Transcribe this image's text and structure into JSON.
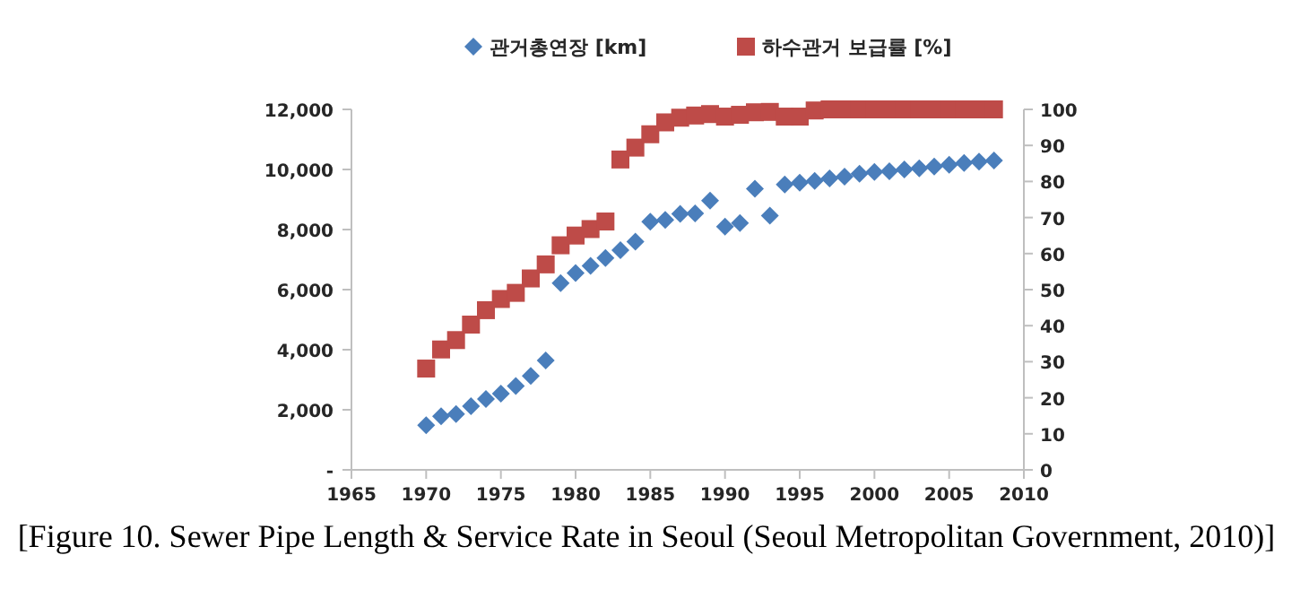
{
  "chart_data": {
    "type": "scatter",
    "x": [
      1970,
      1971,
      1972,
      1973,
      1974,
      1975,
      1976,
      1977,
      1978,
      1979,
      1980,
      1981,
      1982,
      1983,
      1984,
      1985,
      1986,
      1987,
      1988,
      1989,
      1990,
      1991,
      1992,
      1993,
      1994,
      1995,
      1996,
      1997,
      1998,
      1999,
      2000,
      2001,
      2002,
      2003,
      2004,
      2005,
      2006,
      2007,
      2008
    ],
    "series": [
      {
        "name": "관거총연장 [km]",
        "color": "#4a7ebb",
        "marker": "diamond",
        "values": [
          1485,
          1780,
          1860,
          2120,
          2360,
          2540,
          2790,
          3130,
          3640,
          6220,
          6550,
          6790,
          7050,
          7310,
          7600,
          8260,
          8320,
          8520,
          8540,
          8960,
          8100,
          8220,
          9360,
          8460,
          9500,
          9560,
          9620,
          9700,
          9760,
          9860,
          9920,
          9940,
          10000,
          10040,
          10100,
          10160,
          10220,
          10260,
          10300
        ]
      },
      {
        "name": "하수관거 보급률 [%]",
        "color": "#be4b48",
        "marker": "square",
        "axis": "y2",
        "values": [
          28.1,
          33.4,
          36.0,
          40.3,
          44.3,
          47.4,
          49.1,
          53.1,
          57.0,
          62.3,
          65.0,
          66.8,
          68.9,
          86.1,
          89.4,
          93.1,
          96.4,
          97.7,
          98.3,
          98.7,
          98.0,
          98.5,
          99.2,
          99.3,
          98.0,
          98.0,
          99.7,
          100,
          100,
          100,
          100,
          100,
          100,
          100,
          100,
          100,
          100,
          100,
          100
        ]
      }
    ],
    "xlim": [
      1965,
      2010
    ],
    "xticks": [
      1965,
      1970,
      1975,
      1980,
      1985,
      1990,
      1995,
      2000,
      2005,
      2010
    ],
    "ylim": [
      0,
      12000
    ],
    "yticks": [
      {
        "value": 0,
        "label": "-"
      },
      {
        "value": 2000,
        "label": "2,000"
      },
      {
        "value": 4000,
        "label": "4,000"
      },
      {
        "value": 6000,
        "label": "6,000"
      },
      {
        "value": 8000,
        "label": "8,000"
      },
      {
        "value": 10000,
        "label": "10,000"
      },
      {
        "value": 12000,
        "label": "12,000"
      }
    ],
    "y2lim": [
      0,
      100
    ],
    "y2ticks": [
      0,
      10,
      20,
      30,
      40,
      50,
      60,
      70,
      80,
      90,
      100
    ],
    "grid": false,
    "legend": "top",
    "annotations": [
      "[Figure 10. Sewer Pipe Length & Service Rate in Seoul (Seoul Metropolitan Government, 2010)]"
    ]
  }
}
